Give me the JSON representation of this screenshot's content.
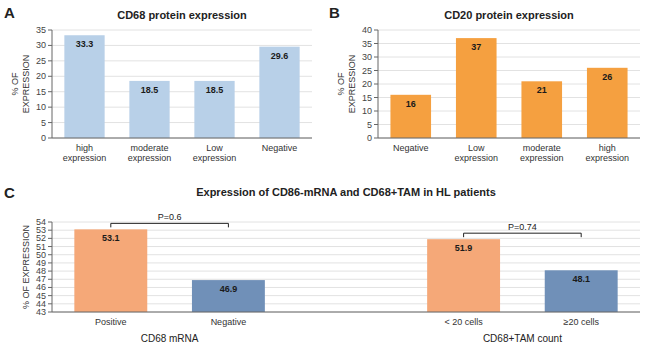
{
  "chart_data": [
    {
      "type": "bar",
      "panel_label": "A",
      "title": "CD68 protein expression",
      "categories": [
        "high expression",
        "moderate expression",
        "Low expression",
        "Negative"
      ],
      "values": [
        33.3,
        18.5,
        18.5,
        29.6
      ],
      "color": "#b8d0e8",
      "ylim": [
        0,
        35
      ],
      "yticks": [
        0,
        5,
        10,
        15,
        20,
        25,
        30,
        35
      ],
      "ylabel": "% OF\nEXPRESSION",
      "grid": true,
      "data_labels": true
    },
    {
      "type": "bar",
      "panel_label": "B",
      "title": "CD20 protein expression",
      "categories": [
        "Negative",
        "Low expression",
        "moderate expression",
        "high expression"
      ],
      "values": [
        16,
        37,
        21,
        26
      ],
      "color": "#f5a040",
      "ylim": [
        0,
        40
      ],
      "yticks": [
        0,
        5,
        10,
        15,
        20,
        25,
        30,
        35,
        40
      ],
      "ylabel": "% OF\nEXPRESSION",
      "grid": true,
      "data_labels": true
    },
    {
      "type": "bar",
      "panel_label": "C",
      "title": "Expression of CD86-mRNA and CD68+TAM in HL patients",
      "categories": [
        "Positive",
        "Negative",
        "< 20 cells",
        "≥20 cells"
      ],
      "values": [
        53.1,
        46.9,
        51.9,
        48.1
      ],
      "colors": [
        "#f5a878",
        "#7090b8",
        "#f5a878",
        "#7090b8"
      ],
      "groups": [
        "CD68 mRNA",
        "CD68+TAM count"
      ],
      "annotations": [
        "P=0.6",
        "P=0.74"
      ],
      "ylim": [
        43,
        54
      ],
      "yticks": [
        43,
        44,
        45,
        46,
        47,
        48,
        49,
        50,
        51,
        52,
        53,
        54
      ],
      "ylabel": "% OF EXPRESSION",
      "grid": true,
      "data_labels": true
    }
  ]
}
